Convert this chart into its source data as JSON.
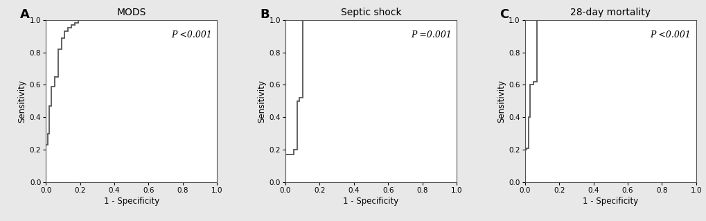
{
  "panels": [
    {
      "label": "A",
      "title": "MODS",
      "pvalue_italic": "P",
      "pvalue_rest": " <0.001",
      "roc_x": [
        0.0,
        0.0,
        0.01,
        0.01,
        0.02,
        0.02,
        0.03,
        0.03,
        0.05,
        0.05,
        0.07,
        0.07,
        0.09,
        0.09,
        0.11,
        0.11,
        0.13,
        0.13,
        0.15,
        0.15,
        0.17,
        0.17,
        0.19,
        0.19,
        0.22,
        0.22,
        0.28,
        1.0
      ],
      "roc_y": [
        0.0,
        0.23,
        0.23,
        0.3,
        0.3,
        0.47,
        0.47,
        0.59,
        0.59,
        0.65,
        0.65,
        0.82,
        0.82,
        0.89,
        0.89,
        0.93,
        0.93,
        0.95,
        0.95,
        0.97,
        0.97,
        0.98,
        0.98,
        1.0,
        1.0,
        1.0,
        1.0,
        1.0
      ]
    },
    {
      "label": "B",
      "title": "Septic shock",
      "pvalue_italic": "P",
      "pvalue_rest": " =0.001",
      "roc_x": [
        0.0,
        0.0,
        0.05,
        0.05,
        0.07,
        0.07,
        0.08,
        0.08,
        0.1,
        0.1,
        0.14,
        0.14,
        0.18,
        1.0
      ],
      "roc_y": [
        0.0,
        0.17,
        0.17,
        0.2,
        0.2,
        0.5,
        0.5,
        0.52,
        0.52,
        1.0,
        1.0,
        1.0,
        1.0,
        1.0
      ]
    },
    {
      "label": "C",
      "title": "28-day mortality",
      "pvalue_italic": "P",
      "pvalue_rest": " <0.001",
      "roc_x": [
        0.0,
        0.0,
        0.01,
        0.01,
        0.02,
        0.02,
        0.03,
        0.03,
        0.05,
        0.05,
        0.07,
        0.07,
        0.1,
        0.1,
        0.13,
        1.0
      ],
      "roc_y": [
        0.0,
        0.2,
        0.2,
        0.21,
        0.21,
        0.4,
        0.4,
        0.6,
        0.6,
        0.62,
        0.62,
        1.0,
        1.0,
        1.0,
        1.0,
        1.0
      ]
    }
  ],
  "line_color": "#555555",
  "line_width": 1.3,
  "xlabel": "1 - Specificity",
  "ylabel": "Sensitivity",
  "xlim": [
    0.0,
    1.0
  ],
  "ylim": [
    0.0,
    1.0
  ],
  "xticks": [
    0.0,
    0.2,
    0.4,
    0.6,
    0.8,
    1.0
  ],
  "yticks": [
    0.0,
    0.2,
    0.4,
    0.6,
    0.8,
    1.0
  ],
  "tick_fontsize": 7.5,
  "axis_label_fontsize": 8.5,
  "title_fontsize": 10,
  "pvalue_fontsize": 9,
  "panel_label_fontsize": 13,
  "background_color": "#ffffff",
  "spine_color": "#555555",
  "fig_bg": "#e8e8e8"
}
